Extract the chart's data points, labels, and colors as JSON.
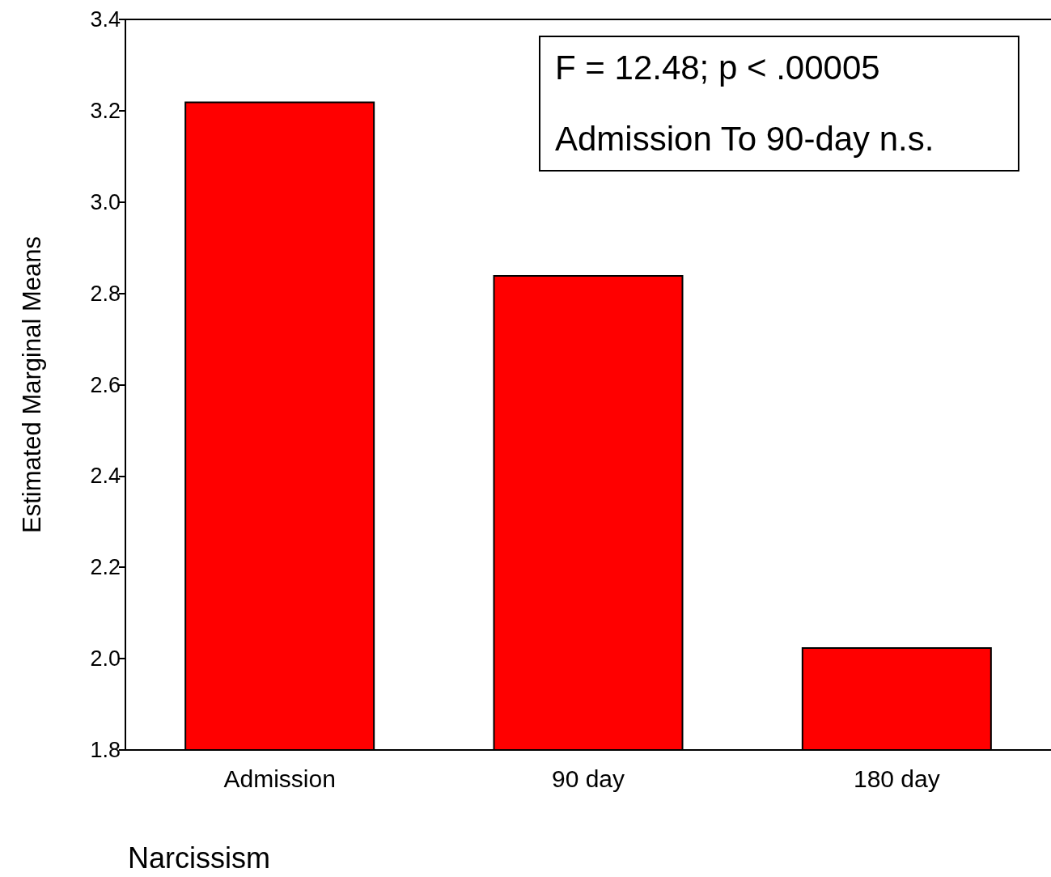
{
  "chart_data": {
    "type": "bar",
    "xlabel": "Narcissism",
    "ylabel": "Estimated Marginal Means",
    "categories": [
      "Admission",
      "90 day",
      "180 day"
    ],
    "values": [
      3.22,
      2.84,
      2.025
    ],
    "color": "#ff0000",
    "ylim": [
      1.8,
      3.4
    ],
    "yticks": [
      1.8,
      {
        "value": 2,
        "label": "2.0"
      },
      2.2,
      2.4,
      2.6,
      2.8,
      {
        "value": 3,
        "label": "3.0"
      },
      3.2,
      3.4
    ],
    "grid": false,
    "annotations": [
      "F = 12.48; p < .00005",
      "Admission To 90-day n.s."
    ]
  }
}
